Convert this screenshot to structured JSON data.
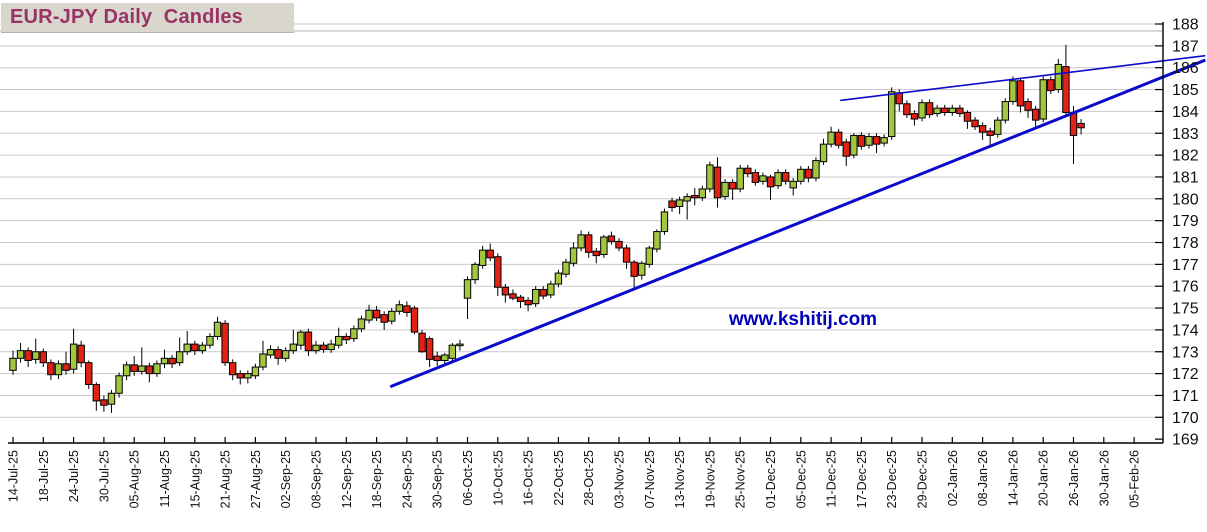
{
  "title": {
    "text": "EUR-JPY Daily  Candles"
  },
  "watermark": {
    "text": "www.kshitij.com"
  },
  "colors": {
    "up_candle": "#a4c53e",
    "down_candle": "#e02114",
    "wick": "#000000",
    "grid": "#c9c9c9",
    "axis": "#000000",
    "trendline": "#0b0bcd",
    "title_text": "#993366",
    "title_bg": "#d9d6ce",
    "watermark": "#0000bb",
    "background": "#ffffff"
  },
  "chart_data": {
    "type": "candlestick",
    "title": "EUR-JPY Daily Candles",
    "legend_position": "none",
    "grid": true,
    "y_axis_side": "right",
    "ylim": [
      169,
      188
    ],
    "y_ticks": [
      188,
      187,
      186,
      185,
      184,
      183,
      182,
      181,
      180,
      179,
      178,
      177,
      176,
      175,
      174,
      173,
      172,
      171,
      170,
      169
    ],
    "x_tick_labels": [
      "14-Jul-25",
      "18-Jul-25",
      "24-Jul-25",
      "30-Jul-25",
      "05-Aug-25",
      "11-Aug-25",
      "15-Aug-25",
      "21-Aug-25",
      "27-Aug-25",
      "02-Sep-25",
      "08-Sep-25",
      "12-Sep-25",
      "18-Sep-25",
      "24-Sep-25",
      "30-Sep-25",
      "06-Oct-25",
      "10-Oct-25",
      "16-Oct-25",
      "22-Oct-25",
      "28-Oct-25",
      "03-Nov-25",
      "07-Nov-25",
      "13-Nov-25",
      "19-Nov-25",
      "25-Nov-25",
      "01-Dec-25",
      "05-Dec-25",
      "11-Dec-25",
      "17-Dec-25",
      "23-Dec-25",
      "29-Dec-25",
      "02-Jan-26",
      "08-Jan-26",
      "14-Jan-26",
      "20-Jan-26",
      "26-Jan-26",
      "30-Jan-26",
      "05-Feb-26"
    ],
    "candles_per_xtick": 4,
    "ohlc": [
      [
        172.15,
        173.05,
        171.95,
        172.7
      ],
      [
        172.7,
        173.4,
        172.5,
        173.05
      ],
      [
        173.05,
        173.2,
        172.3,
        172.6
      ],
      [
        172.65,
        173.6,
        172.45,
        173.0
      ],
      [
        173.0,
        173.15,
        172.3,
        172.5
      ],
      [
        172.5,
        172.65,
        171.7,
        171.95
      ],
      [
        171.95,
        172.6,
        171.75,
        172.45
      ],
      [
        172.45,
        173.0,
        171.95,
        172.15
      ],
      [
        172.2,
        174.05,
        172.0,
        173.35
      ],
      [
        173.3,
        173.5,
        172.3,
        172.5
      ],
      [
        172.5,
        172.6,
        171.3,
        171.5
      ],
      [
        171.5,
        171.6,
        170.3,
        170.75
      ],
      [
        170.8,
        171.0,
        170.25,
        170.55
      ],
      [
        170.6,
        171.25,
        170.2,
        171.1
      ],
      [
        171.1,
        172.05,
        170.9,
        171.9
      ],
      [
        171.9,
        172.55,
        171.7,
        172.4
      ],
      [
        172.4,
        172.8,
        171.9,
        172.1
      ],
      [
        172.1,
        173.2,
        171.95,
        172.35
      ],
      [
        172.35,
        172.5,
        171.6,
        172.0
      ],
      [
        172.0,
        172.6,
        171.85,
        172.45
      ],
      [
        172.45,
        173.1,
        172.25,
        172.7
      ],
      [
        172.7,
        172.85,
        172.25,
        172.45
      ],
      [
        172.5,
        173.65,
        172.35,
        173.0
      ],
      [
        173.0,
        173.95,
        172.85,
        173.35
      ],
      [
        173.35,
        173.5,
        172.85,
        173.05
      ],
      [
        173.05,
        173.45,
        172.9,
        173.3
      ],
      [
        173.3,
        173.85,
        173.15,
        173.7
      ],
      [
        173.7,
        174.6,
        173.55,
        174.35
      ],
      [
        174.3,
        174.45,
        172.35,
        172.5
      ],
      [
        172.5,
        172.65,
        171.7,
        171.95
      ],
      [
        172.0,
        172.15,
        171.5,
        171.8
      ],
      [
        171.8,
        172.15,
        171.55,
        172.0
      ],
      [
        171.9,
        172.45,
        171.75,
        172.3
      ],
      [
        172.3,
        173.5,
        172.15,
        172.9
      ],
      [
        172.85,
        173.3,
        172.7,
        173.1
      ],
      [
        173.1,
        173.25,
        172.4,
        172.7
      ],
      [
        172.7,
        173.2,
        172.55,
        173.05
      ],
      [
        173.05,
        174.0,
        172.9,
        173.35
      ],
      [
        173.3,
        174.0,
        173.1,
        173.9
      ],
      [
        173.9,
        174.05,
        172.8,
        173.05
      ],
      [
        173.05,
        173.5,
        172.9,
        173.3
      ],
      [
        173.3,
        173.45,
        172.95,
        173.1
      ],
      [
        173.1,
        173.55,
        172.95,
        173.35
      ],
      [
        173.3,
        174.1,
        173.15,
        173.7
      ],
      [
        173.7,
        173.85,
        173.35,
        173.55
      ],
      [
        173.6,
        174.2,
        173.45,
        174.05
      ],
      [
        174.05,
        174.65,
        173.9,
        174.5
      ],
      [
        174.45,
        175.15,
        174.3,
        174.9
      ],
      [
        174.9,
        175.1,
        174.4,
        174.55
      ],
      [
        174.7,
        174.85,
        174.0,
        174.35
      ],
      [
        174.4,
        175.0,
        174.25,
        174.85
      ],
      [
        174.85,
        175.35,
        174.7,
        175.15
      ],
      [
        175.1,
        175.3,
        174.6,
        174.8
      ],
      [
        175.0,
        175.1,
        173.8,
        173.9
      ],
      [
        173.85,
        174.0,
        172.95,
        173.0
      ],
      [
        173.6,
        173.7,
        172.3,
        172.65
      ],
      [
        172.8,
        173.0,
        172.35,
        172.6
      ],
      [
        172.6,
        172.95,
        172.4,
        172.85
      ],
      [
        172.7,
        173.4,
        172.55,
        173.3
      ],
      [
        173.3,
        173.55,
        173.05,
        173.35
      ],
      [
        175.45,
        176.45,
        174.5,
        176.3
      ],
      [
        176.3,
        177.1,
        176.1,
        177.0
      ],
      [
        176.95,
        177.85,
        176.8,
        177.65
      ],
      [
        177.65,
        177.95,
        177.15,
        177.3
      ],
      [
        177.35,
        177.5,
        175.55,
        175.95
      ],
      [
        175.95,
        176.1,
        175.25,
        175.6
      ],
      [
        175.65,
        175.85,
        175.35,
        175.45
      ],
      [
        175.5,
        175.6,
        175.0,
        175.3
      ],
      [
        175.35,
        175.5,
        174.85,
        175.15
      ],
      [
        175.2,
        176.0,
        175.05,
        175.85
      ],
      [
        175.85,
        176.0,
        175.4,
        175.55
      ],
      [
        175.6,
        176.25,
        175.45,
        176.1
      ],
      [
        176.1,
        176.75,
        175.95,
        176.6
      ],
      [
        176.55,
        177.25,
        176.4,
        177.1
      ],
      [
        177.05,
        178.0,
        176.9,
        177.75
      ],
      [
        177.75,
        178.55,
        177.6,
        178.35
      ],
      [
        178.35,
        178.5,
        177.3,
        177.55
      ],
      [
        177.6,
        177.75,
        177.05,
        177.4
      ],
      [
        177.45,
        178.35,
        177.3,
        178.25
      ],
      [
        178.3,
        178.5,
        177.9,
        178.05
      ],
      [
        178.05,
        178.2,
        177.6,
        177.75
      ],
      [
        177.75,
        177.9,
        176.8,
        177.1
      ],
      [
        177.1,
        177.2,
        175.85,
        176.45
      ],
      [
        176.5,
        177.15,
        176.3,
        177.05
      ],
      [
        177.0,
        177.85,
        176.85,
        177.75
      ],
      [
        177.7,
        178.6,
        177.55,
        178.5
      ],
      [
        178.5,
        179.55,
        178.35,
        179.4
      ],
      [
        179.9,
        180.05,
        179.4,
        179.6
      ],
      [
        179.65,
        180.1,
        179.3,
        179.95
      ],
      [
        179.9,
        180.25,
        179.05,
        180.1
      ],
      [
        180.15,
        180.5,
        179.7,
        180.05
      ],
      [
        180.05,
        180.6,
        179.9,
        180.45
      ],
      [
        180.45,
        181.7,
        180.3,
        181.55
      ],
      [
        181.45,
        181.9,
        179.6,
        180.05
      ],
      [
        180.1,
        180.9,
        179.95,
        180.75
      ],
      [
        180.75,
        180.9,
        179.95,
        180.45
      ],
      [
        180.45,
        181.55,
        180.3,
        181.4
      ],
      [
        181.4,
        181.55,
        181.0,
        181.15
      ],
      [
        181.2,
        181.35,
        180.6,
        180.75
      ],
      [
        180.8,
        181.2,
        180.65,
        181.05
      ],
      [
        181.0,
        181.1,
        179.95,
        180.55
      ],
      [
        180.6,
        181.35,
        180.45,
        181.2
      ],
      [
        181.2,
        181.35,
        180.65,
        180.8
      ],
      [
        180.5,
        180.95,
        180.15,
        180.8
      ],
      [
        180.8,
        181.5,
        180.65,
        181.35
      ],
      [
        181.35,
        181.5,
        180.75,
        180.95
      ],
      [
        180.95,
        181.9,
        180.8,
        181.75
      ],
      [
        181.7,
        182.75,
        181.55,
        182.5
      ],
      [
        182.5,
        183.3,
        182.35,
        183.05
      ],
      [
        183.05,
        183.2,
        182.3,
        182.45
      ],
      [
        182.6,
        182.75,
        181.5,
        181.95
      ],
      [
        182.0,
        183.0,
        181.85,
        182.9
      ],
      [
        182.9,
        183.05,
        182.25,
        182.4
      ],
      [
        182.45,
        183.0,
        182.3,
        182.85
      ],
      [
        182.85,
        183.0,
        182.1,
        182.5
      ],
      [
        182.55,
        182.95,
        182.4,
        182.8
      ],
      [
        182.85,
        185.1,
        182.7,
        184.9
      ],
      [
        184.85,
        185.0,
        184.0,
        184.35
      ],
      [
        184.35,
        184.5,
        183.7,
        183.85
      ],
      [
        183.9,
        184.05,
        183.35,
        183.65
      ],
      [
        183.7,
        184.55,
        183.55,
        184.4
      ],
      [
        184.4,
        184.55,
        183.7,
        183.85
      ],
      [
        183.9,
        184.3,
        183.75,
        184.15
      ],
      [
        184.15,
        184.3,
        183.8,
        183.95
      ],
      [
        183.95,
        184.3,
        183.8,
        184.15
      ],
      [
        184.15,
        184.3,
        183.75,
        183.9
      ],
      [
        183.95,
        184.05,
        183.2,
        183.55
      ],
      [
        183.6,
        183.75,
        183.15,
        183.3
      ],
      [
        183.35,
        183.5,
        182.7,
        183.05
      ],
      [
        183.1,
        183.25,
        182.45,
        182.9
      ],
      [
        182.95,
        183.75,
        182.8,
        183.6
      ],
      [
        183.6,
        184.6,
        183.45,
        184.45
      ],
      [
        184.45,
        185.6,
        184.3,
        185.4
      ],
      [
        185.4,
        185.55,
        183.95,
        184.25
      ],
      [
        184.45,
        184.6,
        183.7,
        184.05
      ],
      [
        184.1,
        184.25,
        183.2,
        183.6
      ],
      [
        183.65,
        185.6,
        183.5,
        185.45
      ],
      [
        185.45,
        185.6,
        184.8,
        184.95
      ],
      [
        185.0,
        186.4,
        184.85,
        186.15
      ],
      [
        186.05,
        187.05,
        183.8,
        183.95
      ],
      [
        183.95,
        184.25,
        181.6,
        182.9
      ],
      [
        183.45,
        183.65,
        182.95,
        183.25
      ]
    ],
    "trendlines": [
      {
        "name": "support-trendline",
        "x1_index": 49.8,
        "y1_price": 171.4,
        "x2_index": 157.4,
        "y2_price": 186.35,
        "stroke_width": 3
      },
      {
        "name": "resistance-trendline",
        "x1_index": 109.2,
        "y1_price": 184.5,
        "x2_index": 157.4,
        "y2_price": 186.55,
        "stroke_width": 1.6
      }
    ]
  }
}
